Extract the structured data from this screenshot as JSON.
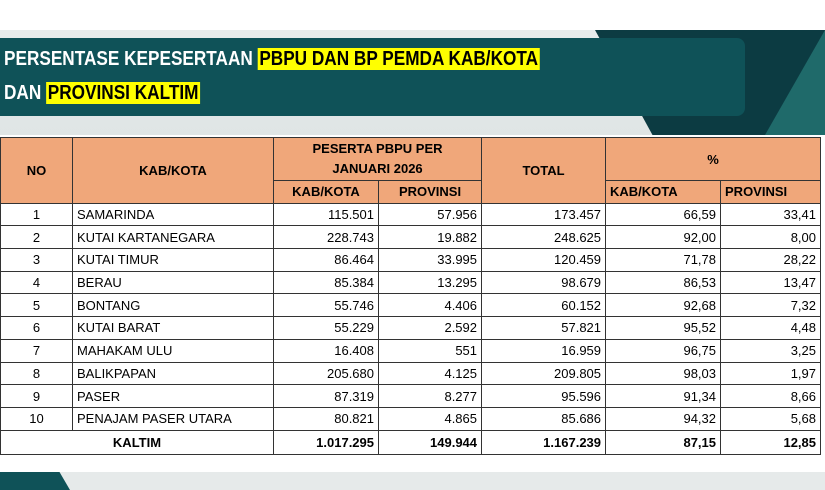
{
  "title": {
    "line1_plain": "PERSENTASE KEPESERTAAN ",
    "line1_highlight": "PBPU DAN BP PEMDA KAB/KOTA",
    "line2_plain": "DAN ",
    "line2_highlight": "PROVINSI KALTIM"
  },
  "colors": {
    "banner": "#0f5258",
    "highlight": "#ffff00",
    "header": "#f0a77a"
  },
  "table": {
    "headers": {
      "no": "NO",
      "kabkota": "KAB/KOTA",
      "peserta": "PESERTA PBPU PER JANUARI 2026",
      "total": "TOTAL",
      "percent": "%",
      "sub_kab": "KAB/KOTA",
      "sub_prov": "PROVINSI",
      "sub_kab2": "KAB/KOTA",
      "sub_prov2": "PROVINSI"
    },
    "rows": [
      {
        "no": "1",
        "name": "SAMARINDA",
        "kab": "115.501",
        "prov": "57.956",
        "total": "173.457",
        "pkab": "66,59",
        "pprov": "33,41"
      },
      {
        "no": "2",
        "name": "KUTAI KARTANEGARA",
        "kab": "228.743",
        "prov": "19.882",
        "total": "248.625",
        "pkab": "92,00",
        "pprov": "8,00"
      },
      {
        "no": "3",
        "name": "KUTAI TIMUR",
        "kab": "86.464",
        "prov": "33.995",
        "total": "120.459",
        "pkab": "71,78",
        "pprov": "28,22"
      },
      {
        "no": "4",
        "name": "BERAU",
        "kab": "85.384",
        "prov": "13.295",
        "total": "98.679",
        "pkab": "86,53",
        "pprov": "13,47"
      },
      {
        "no": "5",
        "name": "BONTANG",
        "kab": "55.746",
        "prov": "4.406",
        "total": "60.152",
        "pkab": "92,68",
        "pprov": "7,32"
      },
      {
        "no": "6",
        "name": "KUTAI BARAT",
        "kab": "55.229",
        "prov": "2.592",
        "total": "57.821",
        "pkab": "95,52",
        "pprov": "4,48"
      },
      {
        "no": "7",
        "name": "MAHAKAM ULU",
        "kab": "16.408",
        "prov": "551",
        "total": "16.959",
        "pkab": "96,75",
        "pprov": "3,25"
      },
      {
        "no": "8",
        "name": "BALIKPAPAN",
        "kab": "205.680",
        "prov": "4.125",
        "total": "209.805",
        "pkab": "98,03",
        "pprov": "1,97"
      },
      {
        "no": "9",
        "name": "PASER",
        "kab": "87.319",
        "prov": "8.277",
        "total": "95.596",
        "pkab": "91,34",
        "pprov": "8,66"
      },
      {
        "no": "10",
        "name": "PENAJAM PASER UTARA",
        "kab": "80.821",
        "prov": "4.865",
        "total": "85.686",
        "pkab": "94,32",
        "pprov": "5,68"
      }
    ],
    "total_row": {
      "name": "KALTIM",
      "kab": "1.017.295",
      "prov": "149.944",
      "total": "1.167.239",
      "pkab": "87,15",
      "pprov": "12,85"
    }
  }
}
